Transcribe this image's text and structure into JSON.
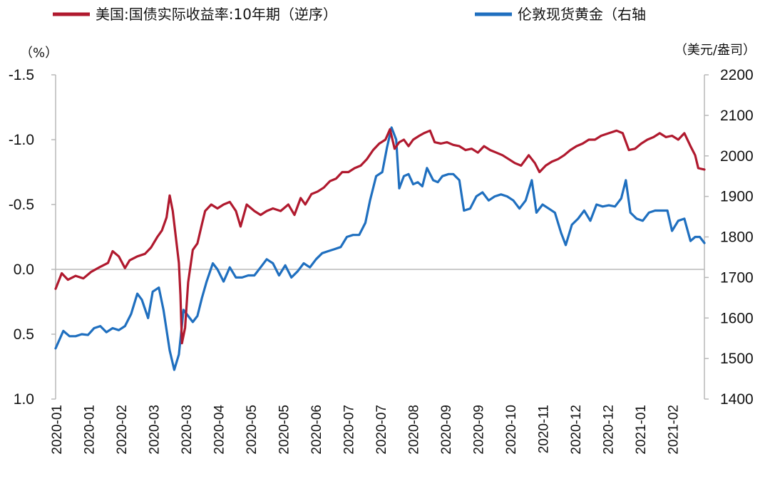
{
  "chart_data": {
    "type": "line",
    "title": "",
    "legend": {
      "placement": "top",
      "items": [
        {
          "label": "美国:国债实际收益率:10年期（逆序）",
          "color": "#b0192e"
        },
        {
          "label": "伦敦现货黄金（右轴",
          "color": "#1f6fbf"
        }
      ]
    },
    "left_axis": {
      "unit": "（%）",
      "reversed": true,
      "range": [
        -1.5,
        1.0
      ],
      "ticks": [
        "-1.5",
        "-1.0",
        "-0.5",
        "0.0",
        "0.5",
        "1.0"
      ],
      "tick_values": [
        -1.5,
        -1.0,
        -0.5,
        0.0,
        0.5,
        1.0
      ]
    },
    "right_axis": {
      "unit": "（美元/盎司）",
      "range": [
        1400,
        2200
      ],
      "ticks": [
        "1400",
        "1500",
        "1600",
        "1700",
        "1800",
        "1900",
        "2000",
        "2100",
        "2200"
      ],
      "tick_values": [
        1400,
        1500,
        1600,
        1700,
        1800,
        1900,
        2000,
        2100,
        2200
      ]
    },
    "x_axis": {
      "tick_labels": [
        "2020-01",
        "2020-01",
        "2020-02",
        "2020-03",
        "2020-03",
        "2020-04",
        "2020-05",
        "2020-05",
        "2020-06",
        "2020-07",
        "2020-07",
        "2020-08",
        "2020-09",
        "2020-09",
        "2020-10",
        "2020-11",
        "2020-12",
        "2020-12",
        "2021-01",
        "2021-02"
      ],
      "start": "2020-01-02",
      "end": "2021-02-26"
    },
    "grid": false,
    "series": [
      {
        "name": "美国:国债实际收益率:10年期（逆序）",
        "axis": "left",
        "color": "#b0192e",
        "points": [
          [
            "2020-01-02",
            0.15
          ],
          [
            "2020-01-06",
            0.03
          ],
          [
            "2020-01-10",
            0.08
          ],
          [
            "2020-01-15",
            0.05
          ],
          [
            "2020-01-20",
            0.07
          ],
          [
            "2020-01-25",
            0.02
          ],
          [
            "2020-01-31",
            -0.02
          ],
          [
            "2020-02-05",
            -0.05
          ],
          [
            "2020-02-08",
            -0.14
          ],
          [
            "2020-02-12",
            -0.1
          ],
          [
            "2020-02-16",
            -0.01
          ],
          [
            "2020-02-19",
            -0.07
          ],
          [
            "2020-02-24",
            -0.1
          ],
          [
            "2020-02-29",
            -0.12
          ],
          [
            "2020-03-04",
            -0.17
          ],
          [
            "2020-03-08",
            -0.25
          ],
          [
            "2020-03-11",
            -0.3
          ],
          [
            "2020-03-14",
            -0.4
          ],
          [
            "2020-03-16",
            -0.57
          ],
          [
            "2020-03-18",
            -0.45
          ],
          [
            "2020-03-20",
            -0.25
          ],
          [
            "2020-03-22",
            -0.05
          ],
          [
            "2020-03-23",
            0.2
          ],
          [
            "2020-03-24",
            0.57
          ],
          [
            "2020-03-26",
            0.45
          ],
          [
            "2020-03-28",
            0.1
          ],
          [
            "2020-03-31",
            -0.15
          ],
          [
            "2020-04-03",
            -0.2
          ],
          [
            "2020-04-06",
            -0.35
          ],
          [
            "2020-04-08",
            -0.45
          ],
          [
            "2020-04-12",
            -0.5
          ],
          [
            "2020-04-16",
            -0.47
          ],
          [
            "2020-04-20",
            -0.5
          ],
          [
            "2020-04-24",
            -0.52
          ],
          [
            "2020-04-28",
            -0.45
          ],
          [
            "2020-05-01",
            -0.33
          ],
          [
            "2020-05-05",
            -0.5
          ],
          [
            "2020-05-10",
            -0.45
          ],
          [
            "2020-05-14",
            -0.42
          ],
          [
            "2020-05-18",
            -0.45
          ],
          [
            "2020-05-22",
            -0.47
          ],
          [
            "2020-05-27",
            -0.45
          ],
          [
            "2020-06-01",
            -0.5
          ],
          [
            "2020-06-05",
            -0.42
          ],
          [
            "2020-06-09",
            -0.55
          ],
          [
            "2020-06-12",
            -0.5
          ],
          [
            "2020-06-16",
            -0.58
          ],
          [
            "2020-06-20",
            -0.6
          ],
          [
            "2020-06-24",
            -0.63
          ],
          [
            "2020-06-28",
            -0.68
          ],
          [
            "2020-07-02",
            -0.7
          ],
          [
            "2020-07-06",
            -0.75
          ],
          [
            "2020-07-10",
            -0.75
          ],
          [
            "2020-07-14",
            -0.78
          ],
          [
            "2020-07-18",
            -0.8
          ],
          [
            "2020-07-22",
            -0.85
          ],
          [
            "2020-07-26",
            -0.92
          ],
          [
            "2020-07-30",
            -0.97
          ],
          [
            "2020-08-03",
            -1.0
          ],
          [
            "2020-08-06",
            -1.08
          ],
          [
            "2020-08-09",
            -0.93
          ],
          [
            "2020-08-12",
            -0.98
          ],
          [
            "2020-08-15",
            -1.0
          ],
          [
            "2020-08-18",
            -0.95
          ],
          [
            "2020-08-21",
            -1.0
          ],
          [
            "2020-08-25",
            -1.03
          ],
          [
            "2020-08-28",
            -1.05
          ],
          [
            "2020-09-01",
            -1.07
          ],
          [
            "2020-09-04",
            -0.98
          ],
          [
            "2020-09-08",
            -0.97
          ],
          [
            "2020-09-12",
            -0.98
          ],
          [
            "2020-09-16",
            -0.96
          ],
          [
            "2020-09-20",
            -0.95
          ],
          [
            "2020-09-24",
            -0.92
          ],
          [
            "2020-09-28",
            -0.93
          ],
          [
            "2020-10-02",
            -0.9
          ],
          [
            "2020-10-06",
            -0.95
          ],
          [
            "2020-10-10",
            -0.92
          ],
          [
            "2020-10-14",
            -0.9
          ],
          [
            "2020-10-18",
            -0.88
          ],
          [
            "2020-10-22",
            -0.85
          ],
          [
            "2020-10-26",
            -0.82
          ],
          [
            "2020-10-30",
            -0.8
          ],
          [
            "2020-11-04",
            -0.88
          ],
          [
            "2020-11-08",
            -0.82
          ],
          [
            "2020-11-11",
            -0.75
          ],
          [
            "2020-11-15",
            -0.8
          ],
          [
            "2020-11-19",
            -0.83
          ],
          [
            "2020-11-23",
            -0.85
          ],
          [
            "2020-11-27",
            -0.88
          ],
          [
            "2020-12-01",
            -0.92
          ],
          [
            "2020-12-05",
            -0.95
          ],
          [
            "2020-12-09",
            -0.97
          ],
          [
            "2020-12-13",
            -1.0
          ],
          [
            "2020-12-17",
            -1.0
          ],
          [
            "2020-12-21",
            -1.03
          ],
          [
            "2020-12-26",
            -1.05
          ],
          [
            "2020-12-31",
            -1.07
          ],
          [
            "2021-01-04",
            -1.05
          ],
          [
            "2021-01-08",
            -0.92
          ],
          [
            "2021-01-12",
            -0.93
          ],
          [
            "2021-01-16",
            -0.97
          ],
          [
            "2021-01-20",
            -1.0
          ],
          [
            "2021-01-24",
            -1.02
          ],
          [
            "2021-01-28",
            -1.05
          ],
          [
            "2021-02-01",
            -1.02
          ],
          [
            "2021-02-05",
            -1.03
          ],
          [
            "2021-02-09",
            -1.0
          ],
          [
            "2021-02-13",
            -1.05
          ],
          [
            "2021-02-17",
            -0.95
          ],
          [
            "2021-02-20",
            -0.88
          ],
          [
            "2021-02-22",
            -0.78
          ],
          [
            "2021-02-26",
            -0.77
          ]
        ]
      },
      {
        "name": "伦敦现货黄金（右轴",
        "axis": "right",
        "color": "#1f6fbf",
        "points": [
          [
            "2020-01-02",
            1525
          ],
          [
            "2020-01-07",
            1568
          ],
          [
            "2020-01-11",
            1555
          ],
          [
            "2020-01-15",
            1555
          ],
          [
            "2020-01-19",
            1560
          ],
          [
            "2020-01-23",
            1558
          ],
          [
            "2020-01-27",
            1575
          ],
          [
            "2020-01-31",
            1580
          ],
          [
            "2020-02-04",
            1565
          ],
          [
            "2020-02-08",
            1575
          ],
          [
            "2020-02-12",
            1570
          ],
          [
            "2020-02-16",
            1580
          ],
          [
            "2020-02-20",
            1610
          ],
          [
            "2020-02-24",
            1660
          ],
          [
            "2020-02-27",
            1645
          ],
          [
            "2020-03-02",
            1600
          ],
          [
            "2020-03-05",
            1665
          ],
          [
            "2020-03-09",
            1675
          ],
          [
            "2020-03-12",
            1620
          ],
          [
            "2020-03-16",
            1520
          ],
          [
            "2020-03-19",
            1472
          ],
          [
            "2020-03-22",
            1510
          ],
          [
            "2020-03-25",
            1620
          ],
          [
            "2020-03-28",
            1605
          ],
          [
            "2020-03-31",
            1590
          ],
          [
            "2020-04-03",
            1605
          ],
          [
            "2020-04-06",
            1650
          ],
          [
            "2020-04-09",
            1690
          ],
          [
            "2020-04-13",
            1735
          ],
          [
            "2020-04-16",
            1720
          ],
          [
            "2020-04-20",
            1690
          ],
          [
            "2020-04-24",
            1725
          ],
          [
            "2020-04-28",
            1700
          ],
          [
            "2020-05-02",
            1700
          ],
          [
            "2020-05-06",
            1705
          ],
          [
            "2020-05-10",
            1705
          ],
          [
            "2020-05-14",
            1725
          ],
          [
            "2020-05-18",
            1745
          ],
          [
            "2020-05-22",
            1735
          ],
          [
            "2020-05-26",
            1705
          ],
          [
            "2020-05-30",
            1730
          ],
          [
            "2020-06-03",
            1700
          ],
          [
            "2020-06-07",
            1715
          ],
          [
            "2020-06-11",
            1735
          ],
          [
            "2020-06-15",
            1725
          ],
          [
            "2020-06-19",
            1745
          ],
          [
            "2020-06-23",
            1760
          ],
          [
            "2020-06-27",
            1765
          ],
          [
            "2020-07-01",
            1770
          ],
          [
            "2020-07-05",
            1775
          ],
          [
            "2020-07-09",
            1800
          ],
          [
            "2020-07-13",
            1805
          ],
          [
            "2020-07-17",
            1805
          ],
          [
            "2020-07-21",
            1835
          ],
          [
            "2020-07-24",
            1890
          ],
          [
            "2020-07-28",
            1950
          ],
          [
            "2020-08-01",
            1960
          ],
          [
            "2020-08-04",
            2020
          ],
          [
            "2020-08-07",
            2070
          ],
          [
            "2020-08-10",
            2040
          ],
          [
            "2020-08-12",
            1920
          ],
          [
            "2020-08-15",
            1950
          ],
          [
            "2020-08-18",
            1955
          ],
          [
            "2020-08-21",
            1930
          ],
          [
            "2020-08-24",
            1935
          ],
          [
            "2020-08-27",
            1925
          ],
          [
            "2020-08-30",
            1970
          ],
          [
            "2020-09-03",
            1940
          ],
          [
            "2020-09-06",
            1935
          ],
          [
            "2020-09-09",
            1950
          ],
          [
            "2020-09-13",
            1955
          ],
          [
            "2020-09-16",
            1955
          ],
          [
            "2020-09-20",
            1940
          ],
          [
            "2020-09-23",
            1865
          ],
          [
            "2020-09-27",
            1870
          ],
          [
            "2020-10-01",
            1900
          ],
          [
            "2020-10-05",
            1910
          ],
          [
            "2020-10-09",
            1890
          ],
          [
            "2020-10-13",
            1900
          ],
          [
            "2020-10-17",
            1905
          ],
          [
            "2020-10-21",
            1900
          ],
          [
            "2020-10-25",
            1890
          ],
          [
            "2020-10-29",
            1870
          ],
          [
            "2020-11-02",
            1890
          ],
          [
            "2020-11-06",
            1940
          ],
          [
            "2020-11-09",
            1860
          ],
          [
            "2020-11-13",
            1880
          ],
          [
            "2020-11-17",
            1870
          ],
          [
            "2020-11-21",
            1860
          ],
          [
            "2020-11-25",
            1810
          ],
          [
            "2020-11-28",
            1780
          ],
          [
            "2020-12-02",
            1830
          ],
          [
            "2020-12-06",
            1845
          ],
          [
            "2020-12-10",
            1865
          ],
          [
            "2020-12-14",
            1840
          ],
          [
            "2020-12-18",
            1880
          ],
          [
            "2020-12-22",
            1875
          ],
          [
            "2020-12-26",
            1878
          ],
          [
            "2020-12-30",
            1875
          ],
          [
            "2021-01-03",
            1895
          ],
          [
            "2021-01-06",
            1940
          ],
          [
            "2021-01-09",
            1860
          ],
          [
            "2021-01-13",
            1845
          ],
          [
            "2021-01-17",
            1840
          ],
          [
            "2021-01-21",
            1860
          ],
          [
            "2021-01-25",
            1865
          ],
          [
            "2021-01-29",
            1865
          ],
          [
            "2021-02-02",
            1865
          ],
          [
            "2021-02-05",
            1815
          ],
          [
            "2021-02-09",
            1840
          ],
          [
            "2021-02-13",
            1845
          ],
          [
            "2021-02-17",
            1790
          ],
          [
            "2021-02-20",
            1800
          ],
          [
            "2021-02-23",
            1800
          ],
          [
            "2021-02-26",
            1785
          ]
        ]
      }
    ]
  }
}
